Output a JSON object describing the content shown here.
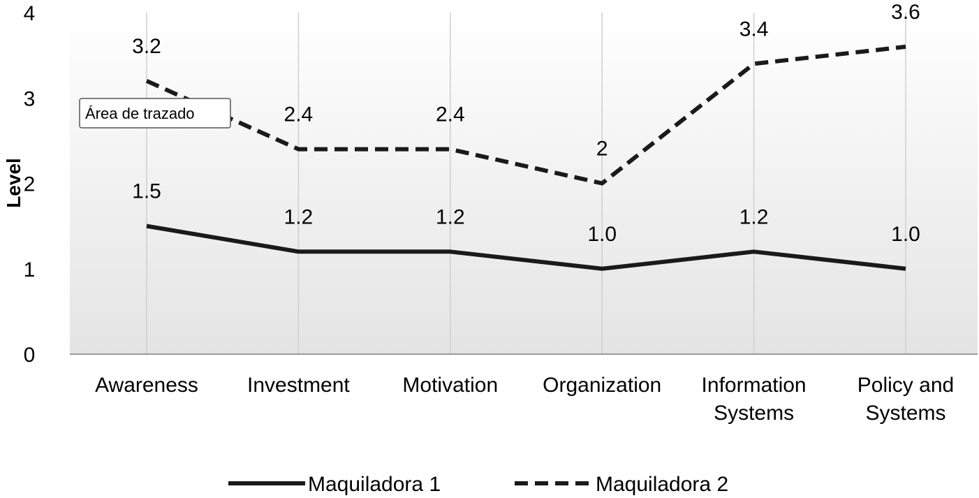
{
  "chart_data": {
    "type": "line",
    "categories": [
      [
        "Awareness"
      ],
      [
        "Investment"
      ],
      [
        "Motivation"
      ],
      [
        "Organization"
      ],
      [
        "Information",
        "Systems"
      ],
      [
        "Policy and",
        "Systems"
      ]
    ],
    "series": [
      {
        "name": "Maquiladora 1",
        "values": [
          1.5,
          1.2,
          1.2,
          1.0,
          1.2,
          1.0
        ],
        "labels": [
          "1.5",
          "1.2",
          "1.2",
          "1.0",
          "1.2",
          "1.0"
        ],
        "style": "solid",
        "color": "#1a1a1a"
      },
      {
        "name": "Maquiladora 2",
        "values": [
          3.2,
          2.4,
          2.4,
          2.0,
          3.4,
          3.6
        ],
        "labels": [
          "3.2",
          "2.4",
          "2.4",
          "2",
          "3.4",
          "3.6"
        ],
        "style": "dashed",
        "color": "#1a1a1a"
      }
    ],
    "ylabel": "Level",
    "xlabel": "",
    "ylim": [
      0,
      4
    ],
    "yticks": [
      0,
      1,
      2,
      3,
      4
    ],
    "grid": "vertical",
    "legend": "bottom",
    "tooltip": "Área de trazado"
  }
}
